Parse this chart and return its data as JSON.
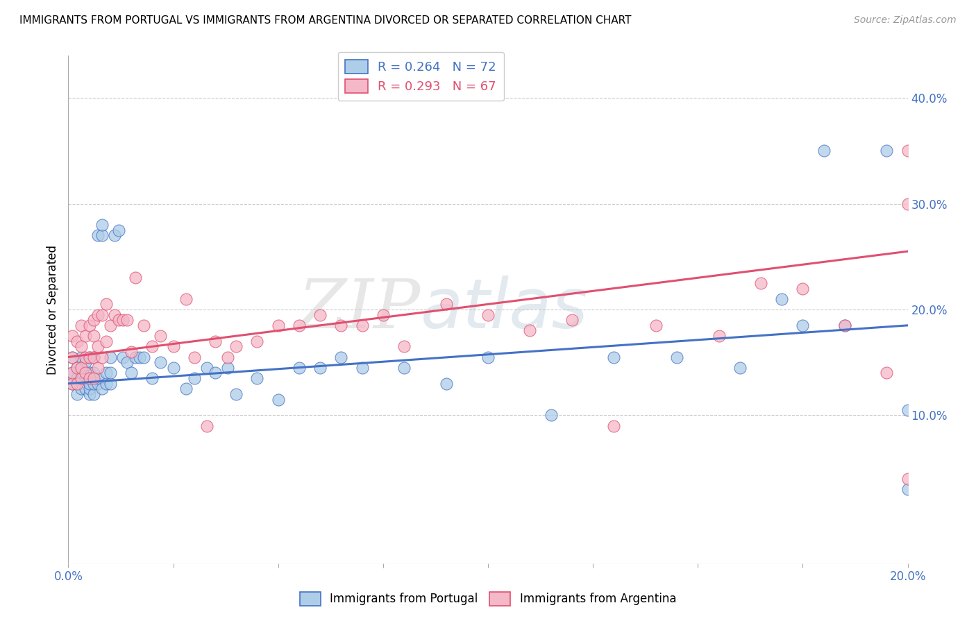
{
  "title": "IMMIGRANTS FROM PORTUGAL VS IMMIGRANTS FROM ARGENTINA DIVORCED OR SEPARATED CORRELATION CHART",
  "source": "Source: ZipAtlas.com",
  "ylabel": "Divorced or Separated",
  "legend_blue_R": "R = 0.264",
  "legend_blue_N": "N = 72",
  "legend_pink_R": "R = 0.293",
  "legend_pink_N": "N = 67",
  "blue_color": "#aecde8",
  "pink_color": "#f4b8c8",
  "blue_line_color": "#4472C4",
  "pink_line_color": "#E05070",
  "watermark_zip": "ZIP",
  "watermark_atlas": "atlas",
  "xlim": [
    0.0,
    0.2
  ],
  "ylim": [
    -0.04,
    0.44
  ],
  "ylabel_right_ticks": [
    "10.0%",
    "20.0%",
    "30.0%",
    "40.0%"
  ],
  "ylabel_right_vals": [
    0.1,
    0.2,
    0.3,
    0.4
  ],
  "blue_points_x": [
    0.001,
    0.001,
    0.001,
    0.002,
    0.002,
    0.002,
    0.003,
    0.003,
    0.003,
    0.003,
    0.003,
    0.004,
    0.004,
    0.004,
    0.004,
    0.005,
    0.005,
    0.005,
    0.005,
    0.005,
    0.006,
    0.006,
    0.006,
    0.006,
    0.007,
    0.007,
    0.007,
    0.008,
    0.008,
    0.008,
    0.009,
    0.009,
    0.01,
    0.01,
    0.01,
    0.011,
    0.012,
    0.013,
    0.014,
    0.015,
    0.016,
    0.017,
    0.018,
    0.02,
    0.022,
    0.025,
    0.028,
    0.03,
    0.033,
    0.035,
    0.038,
    0.04,
    0.045,
    0.05,
    0.055,
    0.06,
    0.065,
    0.07,
    0.08,
    0.09,
    0.1,
    0.115,
    0.13,
    0.145,
    0.16,
    0.17,
    0.175,
    0.18,
    0.185,
    0.195,
    0.2,
    0.2
  ],
  "blue_points_y": [
    0.13,
    0.14,
    0.155,
    0.12,
    0.135,
    0.145,
    0.125,
    0.135,
    0.14,
    0.145,
    0.155,
    0.125,
    0.135,
    0.14,
    0.15,
    0.12,
    0.125,
    0.13,
    0.14,
    0.155,
    0.12,
    0.13,
    0.14,
    0.155,
    0.13,
    0.135,
    0.27,
    0.125,
    0.27,
    0.28,
    0.13,
    0.14,
    0.13,
    0.14,
    0.155,
    0.27,
    0.275,
    0.155,
    0.15,
    0.14,
    0.155,
    0.155,
    0.155,
    0.135,
    0.15,
    0.145,
    0.125,
    0.135,
    0.145,
    0.14,
    0.145,
    0.12,
    0.135,
    0.115,
    0.145,
    0.145,
    0.155,
    0.145,
    0.145,
    0.13,
    0.155,
    0.1,
    0.155,
    0.155,
    0.145,
    0.21,
    0.185,
    0.35,
    0.185,
    0.35,
    0.105,
    0.03
  ],
  "pink_points_x": [
    0.001,
    0.001,
    0.001,
    0.001,
    0.002,
    0.002,
    0.002,
    0.003,
    0.003,
    0.003,
    0.003,
    0.004,
    0.004,
    0.004,
    0.005,
    0.005,
    0.005,
    0.006,
    0.006,
    0.006,
    0.006,
    0.007,
    0.007,
    0.007,
    0.008,
    0.008,
    0.009,
    0.009,
    0.01,
    0.011,
    0.012,
    0.013,
    0.014,
    0.015,
    0.016,
    0.018,
    0.02,
    0.022,
    0.025,
    0.028,
    0.03,
    0.033,
    0.035,
    0.038,
    0.04,
    0.045,
    0.05,
    0.055,
    0.06,
    0.065,
    0.07,
    0.075,
    0.08,
    0.09,
    0.1,
    0.11,
    0.12,
    0.13,
    0.14,
    0.155,
    0.165,
    0.175,
    0.185,
    0.195,
    0.2,
    0.2,
    0.2
  ],
  "pink_points_y": [
    0.13,
    0.14,
    0.155,
    0.175,
    0.13,
    0.145,
    0.17,
    0.135,
    0.145,
    0.165,
    0.185,
    0.14,
    0.155,
    0.175,
    0.135,
    0.155,
    0.185,
    0.135,
    0.155,
    0.175,
    0.19,
    0.145,
    0.165,
    0.195,
    0.155,
    0.195,
    0.17,
    0.205,
    0.185,
    0.195,
    0.19,
    0.19,
    0.19,
    0.16,
    0.23,
    0.185,
    0.165,
    0.175,
    0.165,
    0.21,
    0.155,
    0.09,
    0.17,
    0.155,
    0.165,
    0.17,
    0.185,
    0.185,
    0.195,
    0.185,
    0.185,
    0.195,
    0.165,
    0.205,
    0.195,
    0.18,
    0.19,
    0.09,
    0.185,
    0.175,
    0.225,
    0.22,
    0.185,
    0.14,
    0.3,
    0.35,
    0.04
  ]
}
